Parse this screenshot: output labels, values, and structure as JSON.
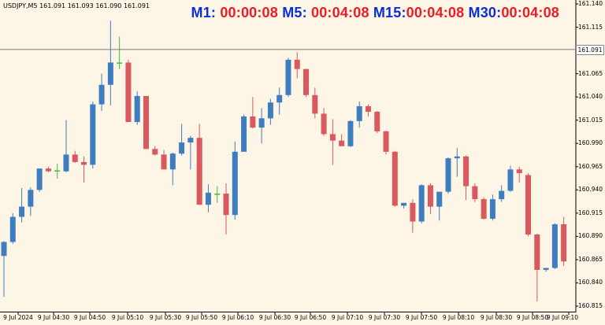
{
  "symbol_info": "USDJPY,M5  161.091 161.093 161.090 161.091",
  "timers": [
    {
      "label": "M1:",
      "value": "00:00:08"
    },
    {
      "label": "M5:",
      "value": "00:04:08"
    },
    {
      "label": "M15:",
      "value": "00:04:08"
    },
    {
      "label": "M30:",
      "value": "00:04:08"
    }
  ],
  "current_price": "161.091",
  "price_axis": [
    "161.140",
    "161.115",
    "161.065",
    "161.040",
    "161.015",
    "160.990",
    "160.965",
    "160.940",
    "160.915",
    "160.890",
    "160.865",
    "160.840",
    "160.815"
  ],
  "time_axis": [
    "9 Jul 2024",
    "9 Jul 04:30",
    "9 Jul 04:50",
    "9 Jul 05:10",
    "9 Jul 05:30",
    "9 Jul 05:50",
    "9 Jul 06:10",
    "9 Jul 06:30",
    "9 Jul 06:50",
    "9 Jul 07:10",
    "9 Jul 07:30",
    "9 Jul 07:50",
    "9 Jul 08:10",
    "9 Jul 08:30",
    "9 Jul 08:50",
    "9 Jul 09:10"
  ],
  "colors": {
    "background": "#fdf5e6",
    "bull": "#3d7dc0",
    "bear": "#d9595f",
    "doji": "#39c43a",
    "grid": "#000000"
  },
  "chart_data": {
    "type": "candlestick",
    "ylim": [
      160.81,
      161.145
    ],
    "candles": [
      {
        "o": 160.869,
        "h": 160.885,
        "l": 160.825,
        "c": 160.884
      },
      {
        "o": 160.884,
        "h": 160.915,
        "l": 160.882,
        "c": 160.911
      },
      {
        "o": 160.911,
        "h": 160.942,
        "l": 160.905,
        "c": 160.922
      },
      {
        "o": 160.922,
        "h": 160.943,
        "l": 160.912,
        "c": 160.94
      },
      {
        "o": 160.94,
        "h": 160.96,
        "l": 160.938,
        "c": 160.963
      },
      {
        "o": 160.963,
        "h": 160.965,
        "l": 160.959,
        "c": 160.96
      },
      {
        "o": 160.96,
        "h": 160.968,
        "l": 160.952,
        "c": 160.961
      },
      {
        "o": 160.96,
        "h": 161.015,
        "l": 160.959,
        "c": 160.978
      },
      {
        "o": 160.978,
        "h": 160.982,
        "l": 160.969,
        "c": 160.97
      },
      {
        "o": 160.97,
        "h": 160.976,
        "l": 160.948,
        "c": 160.967
      },
      {
        "o": 160.967,
        "h": 161.035,
        "l": 160.963,
        "c": 161.032
      },
      {
        "o": 161.032,
        "h": 161.065,
        "l": 161.025,
        "c": 161.053
      },
      {
        "o": 161.053,
        "h": 161.122,
        "l": 161.031,
        "c": 161.077
      },
      {
        "o": 161.077,
        "h": 161.105,
        "l": 161.07,
        "c": 161.077
      },
      {
        "o": 161.077,
        "h": 161.08,
        "l": 161.013,
        "c": 161.013
      },
      {
        "o": 161.013,
        "h": 161.046,
        "l": 161.01,
        "c": 161.041
      },
      {
        "o": 161.041,
        "h": 161.041,
        "l": 160.984,
        "c": 160.984
      },
      {
        "o": 160.984,
        "h": 160.987,
        "l": 160.977,
        "c": 160.978
      },
      {
        "o": 160.978,
        "h": 160.983,
        "l": 160.962,
        "c": 160.962
      },
      {
        "o": 160.962,
        "h": 160.98,
        "l": 160.945,
        "c": 160.979
      },
      {
        "o": 160.979,
        "h": 161.011,
        "l": 160.977,
        "c": 160.991
      },
      {
        "o": 160.991,
        "h": 160.998,
        "l": 160.962,
        "c": 160.996
      },
      {
        "o": 160.996,
        "h": 161.011,
        "l": 160.924,
        "c": 160.924
      },
      {
        "o": 160.924,
        "h": 160.946,
        "l": 160.916,
        "c": 160.937
      },
      {
        "o": 160.936,
        "h": 160.944,
        "l": 160.926,
        "c": 160.936
      },
      {
        "o": 160.936,
        "h": 160.947,
        "l": 160.892,
        "c": 160.913
      },
      {
        "o": 160.913,
        "h": 160.992,
        "l": 160.908,
        "c": 160.981
      },
      {
        "o": 160.981,
        "h": 161.021,
        "l": 160.982,
        "c": 161.019
      },
      {
        "o": 161.019,
        "h": 161.04,
        "l": 161.006,
        "c": 161.007
      },
      {
        "o": 161.007,
        "h": 161.028,
        "l": 160.99,
        "c": 161.017
      },
      {
        "o": 161.017,
        "h": 161.038,
        "l": 161.01,
        "c": 161.034
      },
      {
        "o": 161.034,
        "h": 161.05,
        "l": 161.021,
        "c": 161.042
      },
      {
        "o": 161.042,
        "h": 161.082,
        "l": 161.04,
        "c": 161.08
      },
      {
        "o": 161.08,
        "h": 161.088,
        "l": 161.06,
        "c": 161.07
      },
      {
        "o": 161.07,
        "h": 161.07,
        "l": 161.04,
        "c": 161.042
      },
      {
        "o": 161.042,
        "h": 161.05,
        "l": 161.017,
        "c": 161.022
      },
      {
        "o": 161.022,
        "h": 161.028,
        "l": 160.998,
        "c": 161.0
      },
      {
        "o": 161.0,
        "h": 161.016,
        "l": 160.967,
        "c": 160.993
      },
      {
        "o": 160.993,
        "h": 161.0,
        "l": 160.988,
        "c": 160.987
      },
      {
        "o": 160.987,
        "h": 161.015,
        "l": 160.986,
        "c": 161.014
      },
      {
        "o": 161.014,
        "h": 161.035,
        "l": 161.007,
        "c": 161.03
      },
      {
        "o": 161.03,
        "h": 161.032,
        "l": 161.019,
        "c": 161.024
      },
      {
        "o": 161.024,
        "h": 161.025,
        "l": 161.001,
        "c": 161.003
      },
      {
        "o": 161.003,
        "h": 161.004,
        "l": 160.978,
        "c": 160.981
      },
      {
        "o": 160.981,
        "h": 160.982,
        "l": 160.922,
        "c": 160.923
      },
      {
        "o": 160.923,
        "h": 160.926,
        "l": 160.92,
        "c": 160.926
      },
      {
        "o": 160.926,
        "h": 160.93,
        "l": 160.894,
        "c": 160.906
      },
      {
        "o": 160.906,
        "h": 160.946,
        "l": 160.904,
        "c": 160.945
      },
      {
        "o": 160.945,
        "h": 160.947,
        "l": 160.914,
        "c": 160.922
      },
      {
        "o": 160.922,
        "h": 160.938,
        "l": 160.907,
        "c": 160.938
      },
      {
        "o": 160.938,
        "h": 160.975,
        "l": 160.936,
        "c": 160.974
      },
      {
        "o": 160.974,
        "h": 160.985,
        "l": 160.954,
        "c": 160.976
      },
      {
        "o": 160.976,
        "h": 160.977,
        "l": 160.929,
        "c": 160.944
      },
      {
        "o": 160.944,
        "h": 160.947,
        "l": 160.927,
        "c": 160.93
      },
      {
        "o": 160.93,
        "h": 160.932,
        "l": 160.908,
        "c": 160.909
      },
      {
        "o": 160.909,
        "h": 160.935,
        "l": 160.907,
        "c": 160.93
      },
      {
        "o": 160.93,
        "h": 160.945,
        "l": 160.927,
        "c": 160.939
      },
      {
        "o": 160.939,
        "h": 160.966,
        "l": 160.938,
        "c": 160.962
      },
      {
        "o": 160.962,
        "h": 160.965,
        "l": 160.948,
        "c": 160.958
      },
      {
        "o": 160.956,
        "h": 160.958,
        "l": 160.89,
        "c": 160.892
      },
      {
        "o": 160.892,
        "h": 160.893,
        "l": 160.82,
        "c": 160.854
      },
      {
        "o": 160.854,
        "h": 160.856,
        "l": 160.852,
        "c": 160.856
      },
      {
        "o": 160.856,
        "h": 160.904,
        "l": 160.855,
        "c": 160.903
      },
      {
        "o": 160.903,
        "h": 160.911,
        "l": 160.858,
        "c": 160.863
      }
    ]
  }
}
